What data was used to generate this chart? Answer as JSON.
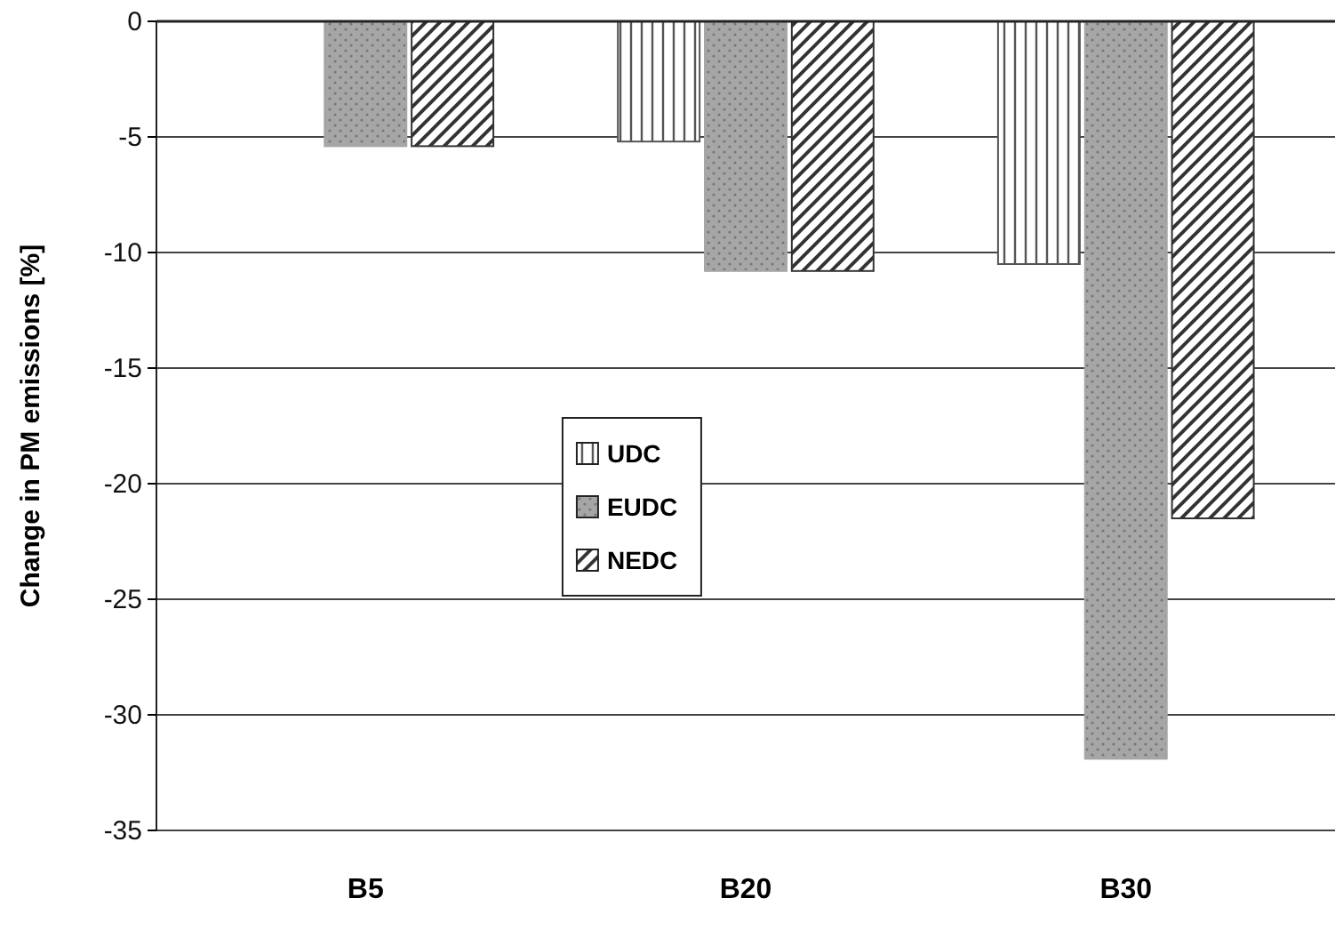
{
  "chart_data": {
    "type": "bar",
    "ylabel": "Change in PM emissions [%]",
    "categories": [
      "B5",
      "B20",
      "B30"
    ],
    "series": [
      {
        "name": "UDC",
        "color": "#555555",
        "values": [
          null,
          -5.2,
          -10.5
        ]
      },
      {
        "name": "EUDC",
        "color": "#a6a6a6",
        "values": [
          -5.4,
          -10.8,
          -31.9
        ]
      },
      {
        "name": "NEDC",
        "color": "#333333",
        "values": [
          -5.4,
          -10.8,
          -21.5
        ]
      }
    ],
    "ylim": [
      -35,
      0
    ],
    "yticks": [
      -35,
      -30,
      -25,
      -20,
      -15,
      -10,
      -5,
      0
    ],
    "grid": "y",
    "legend": "center"
  }
}
